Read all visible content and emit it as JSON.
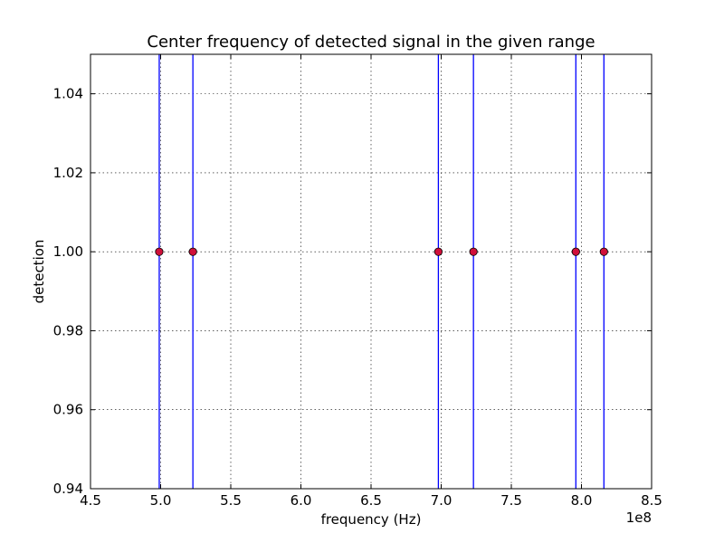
{
  "chart_data": {
    "type": "scatter",
    "title": "Center frequency of detected signal in the given range",
    "xlabel": "frequency (Hz)",
    "ylabel": "detection",
    "x_offset_label": "1e8",
    "xlim": [
      4.5,
      8.5
    ],
    "ylim": [
      0.94,
      1.05
    ],
    "x_ticks": [
      4.5,
      5.0,
      5.5,
      6.0,
      6.5,
      7.0,
      7.5,
      8.0,
      8.5
    ],
    "x_tick_labels": [
      "4.5",
      "5.0",
      "5.5",
      "6.0",
      "6.5",
      "7.0",
      "7.5",
      "8.0",
      "8.5"
    ],
    "y_ticks": [
      0.94,
      0.96,
      0.98,
      1.0,
      1.02,
      1.04
    ],
    "y_tick_labels": [
      "0.94",
      "0.96",
      "0.98",
      "1.00",
      "1.02",
      "1.04"
    ],
    "grid": true,
    "series": [
      {
        "marker": "circle",
        "marker_color": "#d0103a",
        "x": [
          4.99,
          5.23,
          6.98,
          7.23,
          7.96,
          8.16
        ],
        "y": [
          1.0,
          1.0,
          1.0,
          1.0,
          1.0,
          1.0
        ]
      }
    ],
    "vertical_lines": {
      "color": "#0000ff",
      "x": [
        4.99,
        5.23,
        6.98,
        7.23,
        7.96,
        8.16
      ]
    }
  }
}
